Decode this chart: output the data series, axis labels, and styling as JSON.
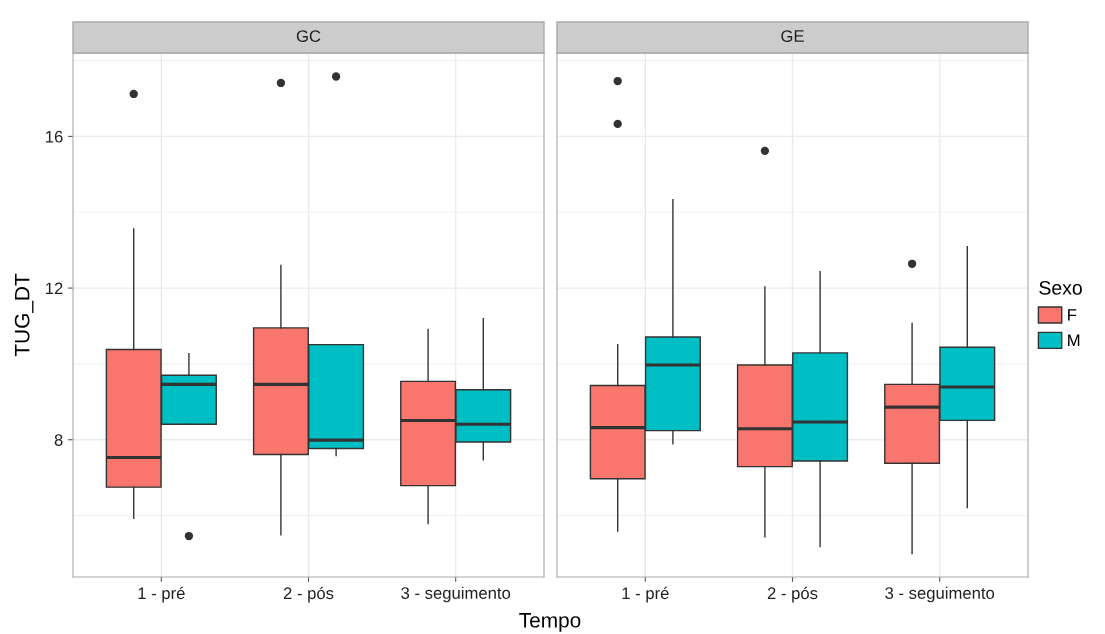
{
  "chart_data": [
    {
      "type": "box",
      "title": "GC",
      "ylabel": "TUG_DT",
      "xlabel": "Tempo",
      "categories": [
        "1 - pré",
        "2 - pós",
        "3 - seguimento"
      ],
      "ylim": [
        4.38,
        18.2
      ],
      "yticks": [
        8,
        12,
        16
      ],
      "grid": true,
      "series": [
        {
          "color": "#f8766d",
          "boxes": [
            {
              "low": 5.93,
              "q1": 6.75,
              "median": 7.53,
              "q3": 10.38,
              "high": 13.56,
              "outliers": [
                17.12
              ]
            },
            {
              "low": 5.49,
              "q1": 7.61,
              "median": 9.46,
              "q3": 10.95,
              "high": 12.6,
              "outliers": [
                17.41
              ]
            },
            {
              "low": 5.79,
              "q1": 6.79,
              "median": 8.51,
              "q3": 9.54,
              "high": 10.91
            }
          ]
        },
        {
          "color": "#00bfc4",
          "boxes": [
            {
              "low": 8.41,
              "q1": 8.41,
              "median": 9.46,
              "q3": 9.7,
              "high": 10.27,
              "outliers": [
                5.46
              ]
            },
            {
              "low": 7.58,
              "q1": 7.77,
              "median": 7.99,
              "q3": 10.51,
              "high": 10.51,
              "outliers": [
                17.58
              ]
            },
            {
              "low": 7.47,
              "q1": 7.94,
              "median": 8.41,
              "q3": 9.32,
              "high": 11.19
            }
          ]
        }
      ]
    },
    {
      "type": "box",
      "title": "GE",
      "legend_title": "Sexo",
      "categories": [
        "1 - pré",
        "2 - pós",
        "3 - seguimento"
      ],
      "ylim": [
        4.38,
        18.2
      ],
      "yticks": [
        8,
        12,
        16
      ],
      "grid": true,
      "legend": "right",
      "tick_labels": "x",
      "series": [
        {
          "name": "F",
          "color": "#f8766d",
          "boxes": [
            {
              "low": 5.59,
              "q1": 6.97,
              "median": 8.32,
              "q3": 9.43,
              "high": 10.51,
              "outliers": [
                17.46,
                16.33
              ]
            },
            {
              "low": 5.44,
              "q1": 7.29,
              "median": 8.29,
              "q3": 9.97,
              "high": 12.03,
              "outliers": [
                15.62
              ]
            },
            {
              "low": 5.0,
              "q1": 7.38,
              "median": 8.86,
              "q3": 9.46,
              "high": 11.07,
              "outliers": [
                12.64
              ]
            }
          ]
        },
        {
          "name": "M",
          "color": "#00bfc4",
          "boxes": [
            {
              "low": 7.89,
              "q1": 8.24,
              "median": 9.97,
              "q3": 10.71,
              "high": 14.33
            },
            {
              "low": 5.18,
              "q1": 7.44,
              "median": 8.47,
              "q3": 10.29,
              "high": 12.43
            },
            {
              "low": 6.21,
              "q1": 8.51,
              "median": 9.39,
              "q3": 10.44,
              "high": 13.09
            }
          ]
        }
      ]
    }
  ]
}
